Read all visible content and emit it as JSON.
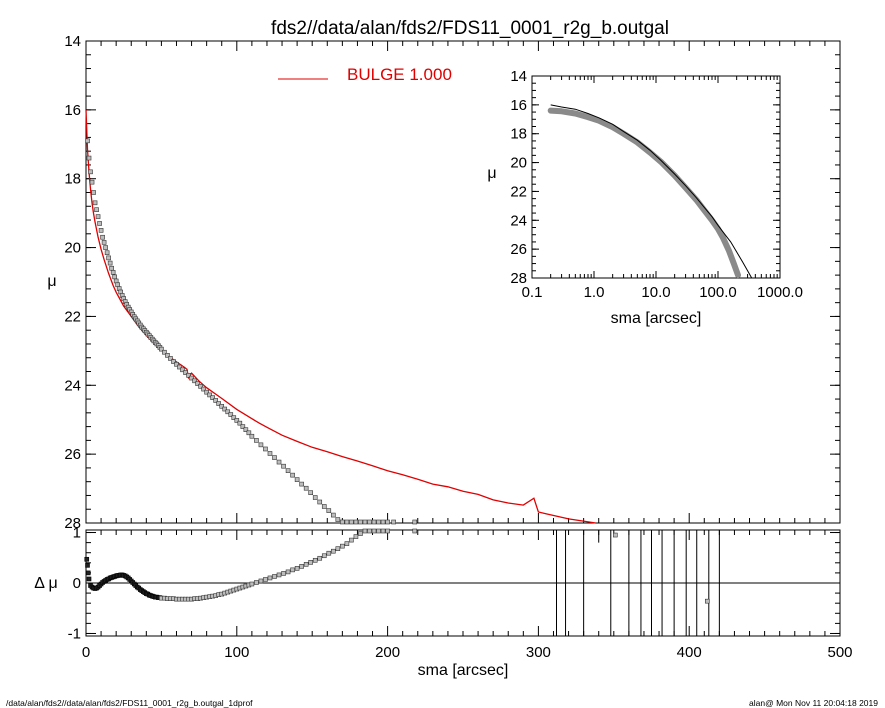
{
  "title": "fds2//data/alan/fds2/FDS11_0001_r2g_b.outgal",
  "footer_left": "/data/alan/fds2//data/alan/fds2/FDS11_0001_r2g_b.outgal_1dprof",
  "footer_right": "alan@  Mon Nov 11 20:04:18 2019",
  "legend": {
    "label": "BULGE  1.000",
    "color": "#e00000"
  },
  "chart_data": [
    {
      "name": "main-profile",
      "type": "scatter",
      "title": "fds2//data/alan/fds2/FDS11_0001_r2g_b.outgal",
      "xlabel": "",
      "ylabel": "μ",
      "xlim": [
        0,
        500
      ],
      "ylim": [
        28,
        14
      ],
      "y_reversed": true,
      "xticks": [],
      "yticks": [
        14,
        16,
        18,
        20,
        22,
        24,
        26,
        28
      ],
      "ytick_labels": [
        "14",
        "16",
        "18",
        "20",
        "22",
        "24",
        "26",
        "28"
      ],
      "series": [
        {
          "name": "data points",
          "style": "squares",
          "x": [
            1,
            2,
            3,
            4,
            5,
            6,
            7,
            8,
            9,
            10,
            11,
            12,
            13,
            14,
            15,
            16,
            17,
            18,
            19,
            20,
            21,
            22,
            23,
            24,
            25,
            26,
            27,
            28,
            29,
            30,
            31,
            32,
            33,
            34,
            35,
            36,
            37,
            38,
            39,
            40,
            41,
            42,
            43,
            44,
            45,
            46,
            47,
            48,
            49,
            50,
            52,
            54,
            56,
            58,
            60,
            62,
            64,
            66,
            68,
            70,
            72,
            74,
            76,
            78,
            80,
            82,
            84,
            86,
            88,
            90,
            92,
            94,
            96,
            98,
            100,
            102,
            104,
            106,
            108,
            110,
            113,
            116,
            119,
            122,
            125,
            128,
            131,
            134,
            137,
            140,
            143,
            146,
            149,
            152,
            155,
            158,
            161,
            164,
            167,
            170,
            173,
            176,
            179,
            182,
            185,
            188,
            191,
            194,
            197,
            200,
            204,
            218
          ],
          "y": [
            16.9,
            17.4,
            17.8,
            18.1,
            18.4,
            18.7,
            18.9,
            19.1,
            19.3,
            19.5,
            19.7,
            19.85,
            20.0,
            20.15,
            20.3,
            20.45,
            20.6,
            20.72,
            20.85,
            20.97,
            21.08,
            21.19,
            21.29,
            21.39,
            21.48,
            21.57,
            21.65,
            21.73,
            21.8,
            21.87,
            21.94,
            22.01,
            22.07,
            22.13,
            22.19,
            22.25,
            22.31,
            22.36,
            22.41,
            22.46,
            22.51,
            22.56,
            22.61,
            22.66,
            22.71,
            22.76,
            22.8,
            22.85,
            22.9,
            22.95,
            23.04,
            23.13,
            23.22,
            23.31,
            23.39,
            23.47,
            23.55,
            23.63,
            23.71,
            23.79,
            23.87,
            23.95,
            24.03,
            24.11,
            24.2,
            24.28,
            24.36,
            24.44,
            24.53,
            24.61,
            24.69,
            24.77,
            24.85,
            24.94,
            25.02,
            25.1,
            25.2,
            25.29,
            25.38,
            25.48,
            25.6,
            25.73,
            25.85,
            25.98,
            26.1,
            26.23,
            26.35,
            26.48,
            26.61,
            26.74,
            26.87,
            26.99,
            27.12,
            27.26,
            27.39,
            27.52,
            27.64,
            27.77,
            27.9,
            27.97,
            28.0,
            28.02,
            28.03,
            28.04,
            28.04,
            28.05,
            28.05,
            28.05,
            28.05,
            28.05,
            28.05,
            28.05
          ]
        },
        {
          "name": "BULGE  1.000",
          "style": "line",
          "color": "#e00000",
          "x": [
            0,
            1,
            2,
            3,
            4,
            5,
            6,
            8,
            10,
            12,
            15,
            18,
            20,
            25,
            30,
            35,
            40,
            45,
            50,
            55,
            60,
            65,
            67,
            68,
            70,
            75,
            80,
            90,
            100,
            110,
            115,
            120,
            130,
            140,
            150,
            160,
            170,
            180,
            190,
            200,
            210,
            220,
            230,
            240,
            250,
            260,
            270,
            280,
            290,
            297,
            300,
            305,
            320,
            338
          ],
          "y": [
            16.0,
            17.15,
            17.8,
            18.3,
            18.7,
            19.0,
            19.25,
            19.7,
            20.05,
            20.35,
            20.75,
            21.1,
            21.3,
            21.7,
            22.0,
            22.3,
            22.55,
            22.78,
            22.98,
            23.16,
            23.32,
            23.47,
            23.54,
            23.78,
            23.65,
            23.88,
            24.07,
            24.38,
            24.7,
            24.97,
            25.1,
            25.22,
            25.45,
            25.63,
            25.8,
            25.93,
            26.07,
            26.2,
            26.34,
            26.48,
            26.6,
            26.73,
            26.87,
            26.95,
            27.08,
            27.17,
            27.33,
            27.42,
            27.48,
            27.28,
            27.68,
            27.73,
            27.88,
            28.05
          ]
        }
      ]
    },
    {
      "name": "inset-log-profile",
      "type": "scatter",
      "xlabel": "sma [arcsec]",
      "ylabel": "μ",
      "xscale": "log",
      "xlim": [
        0.1,
        1000
      ],
      "ylim": [
        28,
        14
      ],
      "y_reversed": true,
      "xticks": [
        0.1,
        1,
        10,
        100,
        1000
      ],
      "xtick_labels": [
        "0.1",
        "1.0",
        "10.0",
        "100.0",
        "1000.0"
      ],
      "yticks": [
        14,
        16,
        18,
        20,
        22,
        24,
        26,
        28
      ],
      "ytick_labels": [
        "14",
        "16",
        "18",
        "20",
        "22",
        "24",
        "26",
        "28"
      ],
      "series": [
        {
          "name": "data points",
          "style": "thick-gray",
          "x": [
            0.2,
            0.3,
            0.5,
            0.8,
            1.2,
            2,
            3,
            5,
            8,
            12,
            20,
            30,
            45,
            60,
            80,
            100,
            120,
            150,
            180,
            210
          ],
          "y": [
            16.4,
            16.45,
            16.6,
            16.85,
            17.1,
            17.55,
            18.0,
            18.6,
            19.3,
            19.95,
            20.9,
            21.75,
            22.6,
            23.3,
            24.0,
            24.6,
            25.2,
            26.1,
            27.0,
            27.8
          ]
        },
        {
          "name": "model",
          "style": "line",
          "x": [
            0.2,
            0.3,
            0.5,
            0.8,
            1.2,
            2,
            3,
            5,
            8,
            12,
            20,
            30,
            45,
            60,
            80,
            100,
            130,
            160,
            200,
            250,
            300,
            350
          ],
          "y": [
            16.0,
            16.15,
            16.3,
            16.6,
            16.9,
            17.35,
            17.85,
            18.45,
            19.15,
            19.85,
            20.8,
            21.6,
            22.45,
            23.1,
            23.75,
            24.35,
            25.0,
            25.5,
            26.2,
            26.9,
            27.5,
            28.05
          ]
        }
      ]
    },
    {
      "name": "residuals",
      "type": "scatter",
      "xlabel": "sma [arcsec]",
      "ylabel": "Δ μ",
      "xlim": [
        0,
        500
      ],
      "ylim": [
        -1.05,
        1.05
      ],
      "xticks": [
        0,
        100,
        200,
        300,
        400,
        500
      ],
      "xtick_labels": [
        "0",
        "100",
        "200",
        "300",
        "400",
        "500"
      ],
      "yticks": [
        -1,
        0,
        1
      ],
      "ytick_labels": [
        "-1",
        "0",
        "1"
      ],
      "series": [
        {
          "name": "residual points",
          "style": "squares",
          "x": [
            0.5,
            1,
            1.5,
            2,
            3,
            4,
            5,
            6,
            7,
            8,
            9,
            10,
            11,
            12,
            13,
            14,
            15,
            16,
            17,
            18,
            19,
            20,
            21,
            22,
            23,
            24,
            25,
            26,
            27,
            28,
            29,
            30,
            31,
            32,
            33,
            34,
            35,
            36,
            37,
            38,
            39,
            40,
            41,
            42,
            43,
            44,
            45,
            46,
            47,
            48,
            49,
            50,
            52,
            54,
            56,
            58,
            60,
            62,
            64,
            66,
            68,
            70,
            72,
            74,
            76,
            78,
            80,
            82,
            84,
            86,
            88,
            90,
            92,
            94,
            96,
            98,
            100,
            102,
            104,
            106,
            108,
            110,
            113,
            116,
            119,
            122,
            125,
            128,
            131,
            134,
            137,
            140,
            143,
            146,
            149,
            152,
            155,
            158,
            161,
            164,
            167,
            170,
            173,
            176,
            179,
            182,
            185,
            188,
            191,
            194,
            197,
            200,
            218
          ],
          "y": [
            0.47,
            0.35,
            0.2,
            0.08,
            -0.05,
            -0.08,
            -0.1,
            -0.11,
            -0.1,
            -0.08,
            -0.05,
            -0.02,
            0.01,
            0.03,
            0.05,
            0.07,
            0.08,
            0.1,
            0.11,
            0.12,
            0.13,
            0.14,
            0.15,
            0.15,
            0.16,
            0.16,
            0.15,
            0.14,
            0.12,
            0.1,
            0.07,
            0.04,
            0.01,
            -0.02,
            -0.05,
            -0.08,
            -0.1,
            -0.13,
            -0.15,
            -0.17,
            -0.19,
            -0.21,
            -0.22,
            -0.24,
            -0.25,
            -0.26,
            -0.27,
            -0.28,
            -0.28,
            -0.29,
            -0.29,
            -0.3,
            -0.3,
            -0.31,
            -0.31,
            -0.31,
            -0.32,
            -0.32,
            -0.32,
            -0.32,
            -0.32,
            -0.32,
            -0.31,
            -0.31,
            -0.3,
            -0.29,
            -0.28,
            -0.27,
            -0.26,
            -0.25,
            -0.23,
            -0.22,
            -0.2,
            -0.18,
            -0.16,
            -0.14,
            -0.12,
            -0.1,
            -0.08,
            -0.06,
            -0.04,
            -0.02,
            0.01,
            0.04,
            0.07,
            0.1,
            0.13,
            0.16,
            0.19,
            0.22,
            0.26,
            0.29,
            0.33,
            0.37,
            0.41,
            0.45,
            0.49,
            0.54,
            0.59,
            0.63,
            0.68,
            0.73,
            0.78,
            0.85,
            0.92,
            0.98,
            1.04,
            1.05,
            1.05,
            1.05,
            1.05,
            1.05,
            1.05
          ]
        },
        {
          "name": "isolated points",
          "style": "squares",
          "x": [
            351,
            412
          ],
          "y": [
            0.95,
            -0.36
          ]
        },
        {
          "name": "vertical residual lines",
          "style": "vlines",
          "x": [
            312,
            318,
            330,
            348,
            360,
            368,
            375,
            382,
            390,
            398,
            405,
            413,
            420
          ]
        },
        {
          "name": "short tick",
          "style": "vlines-short",
          "x": [
            340
          ]
        }
      ]
    }
  ]
}
